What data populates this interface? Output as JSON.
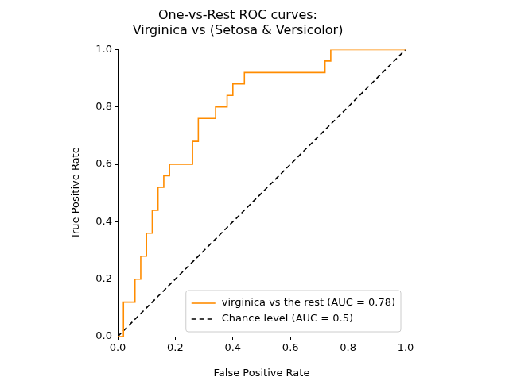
{
  "chart_data": {
    "type": "line",
    "title": "One-vs-Rest ROC curves:\nVirginica vs (Setosa & Versicolor)",
    "x_label": "False Positive Rate",
    "y_label": "True Positive Rate",
    "xlim": [
      0,
      1
    ],
    "ylim": [
      0,
      1
    ],
    "xticks": [
      {
        "value": 0,
        "label": "0.0"
      },
      {
        "value": 0.2,
        "label": "0.2"
      },
      {
        "value": 0.4,
        "label": "0.4"
      },
      {
        "value": 0.6,
        "label": "0.6"
      },
      {
        "value": 0.8,
        "label": "0.8"
      },
      {
        "value": 1,
        "label": "1.0"
      }
    ],
    "yticks": [
      {
        "value": 0,
        "label": "0.0"
      },
      {
        "value": 0.2,
        "label": "0.2"
      },
      {
        "value": 0.4,
        "label": "0.4"
      },
      {
        "value": 0.6,
        "label": "0.6"
      },
      {
        "value": 0.8,
        "label": "0.8"
      },
      {
        "value": 1,
        "label": "1.0"
      }
    ],
    "grid": false,
    "legend": "lower right",
    "series": [
      {
        "name": "virginica vs the rest (AUC = 0.78)",
        "color": "#ff8c00",
        "line_style": "solid",
        "x": [
          0,
          0.02,
          0.02,
          0.06,
          0.06,
          0.08,
          0.08,
          0.1,
          0.1,
          0.12,
          0.12,
          0.14,
          0.14,
          0.16,
          0.16,
          0.18,
          0.18,
          0.26,
          0.26,
          0.28,
          0.28,
          0.34,
          0.34,
          0.38,
          0.38,
          0.4,
          0.4,
          0.44,
          0.44,
          0.72,
          0.72,
          0.74,
          0.74,
          1.0
        ],
        "values": [
          0,
          0,
          0.12,
          0.12,
          0.2,
          0.2,
          0.28,
          0.28,
          0.36,
          0.36,
          0.44,
          0.44,
          0.52,
          0.52,
          0.56,
          0.56,
          0.6,
          0.6,
          0.68,
          0.68,
          0.76,
          0.76,
          0.8,
          0.8,
          0.84,
          0.84,
          0.88,
          0.88,
          0.92,
          0.92,
          0.96,
          0.96,
          1.0,
          1.0
        ]
      },
      {
        "name": "Chance level (AUC = 0.5)",
        "color": "#000000",
        "line_style": "dashed",
        "x": [
          0,
          1
        ],
        "values": [
          0,
          1
        ]
      }
    ]
  }
}
